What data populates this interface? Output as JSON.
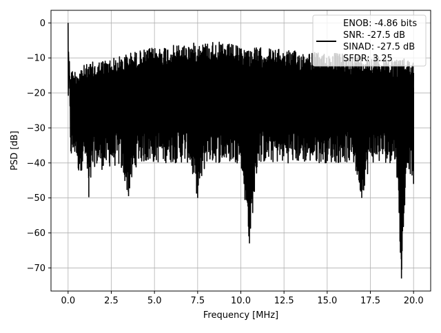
{
  "chart_data": {
    "type": "line",
    "title": "",
    "xlabel": "Frequency [MHz]",
    "ylabel": "PSD [dB]",
    "xlim": [
      -0.99,
      20.99
    ],
    "ylim": [
      -76.6,
      3.6
    ],
    "xticks": [
      0.0,
      2.5,
      5.0,
      7.5,
      10.0,
      12.5,
      15.0,
      17.5,
      20.0
    ],
    "xtick_labels": [
      "0.0",
      "2.5",
      "5.0",
      "7.5",
      "10.0",
      "12.5",
      "15.0",
      "17.5",
      "20.0"
    ],
    "yticks": [
      0,
      -10,
      -20,
      -30,
      -40,
      -50,
      -60,
      -70
    ],
    "ytick_labels": [
      "0",
      "−10",
      "−20",
      "−30",
      "−40",
      "−50",
      "−60",
      "−70"
    ],
    "grid": true,
    "legend": {
      "position": "top-right",
      "entries": [
        "ENOB: -4.86 bits",
        "SNR: -27.5 dB",
        "SINAD: -27.5 dB",
        "SFDR: 3.25"
      ]
    },
    "series": [
      {
        "color": "#000000",
        "x": [
          0.0,
          0.05,
          0.1,
          0.15,
          0.2,
          0.3,
          0.45,
          0.6,
          0.8,
          1.0,
          1.2,
          1.5,
          2.0,
          2.5,
          3.0,
          3.5,
          4.0,
          4.5,
          5.0,
          5.5,
          6.0,
          6.5,
          7.0,
          7.5,
          8.0,
          8.5,
          9.0,
          9.5,
          10.0,
          10.5,
          11.0,
          11.5,
          12.0,
          12.5,
          13.0,
          13.5,
          14.0,
          14.5,
          15.0,
          15.5,
          16.0,
          16.5,
          17.0,
          17.5,
          18.0,
          18.5,
          19.0,
          19.3,
          19.6,
          20.0
        ],
        "upper": [
          0.0,
          -9.0,
          -11.0,
          -12.5,
          -13.0,
          -13.5,
          -13.0,
          -12.5,
          -12.0,
          -12.0,
          -11.5,
          -11.0,
          -10.5,
          -10.0,
          -9.5,
          -8.5,
          -8.0,
          -7.5,
          -7.0,
          -6.5,
          -6.5,
          -6.0,
          -6.0,
          -5.5,
          -5.5,
          -5.0,
          -6.0,
          -6.0,
          -7.0,
          -7.0,
          -7.0,
          -7.0,
          -7.5,
          -7.5,
          -8.0,
          -8.0,
          -8.0,
          -8.5,
          -8.5,
          -8.5,
          -9.0,
          -9.0,
          -9.0,
          -9.0,
          -9.0,
          -9.5,
          -10.0,
          -10.0,
          -10.0,
          -10.5
        ],
        "lower": [
          -25.0,
          -20.0,
          -30.0,
          -38.0,
          -40.0,
          -39.0,
          -38.0,
          -43.0,
          -42.0,
          -40.0,
          -49.8,
          -41.0,
          -42.0,
          -41.0,
          -41.0,
          -49.5,
          -40.0,
          -40.0,
          -40.0,
          -40.0,
          -40.0,
          -40.0,
          -40.0,
          -50.0,
          -40.0,
          -40.0,
          -40.0,
          -40.0,
          -40.0,
          -63.0,
          -40.0,
          -40.0,
          -40.0,
          -40.0,
          -40.0,
          -40.0,
          -40.0,
          -40.0,
          -40.0,
          -40.0,
          -40.0,
          -40.0,
          -50.0,
          -40.0,
          -40.0,
          -40.0,
          -40.0,
          -73.0,
          -40.0,
          -46.0
        ]
      }
    ]
  }
}
